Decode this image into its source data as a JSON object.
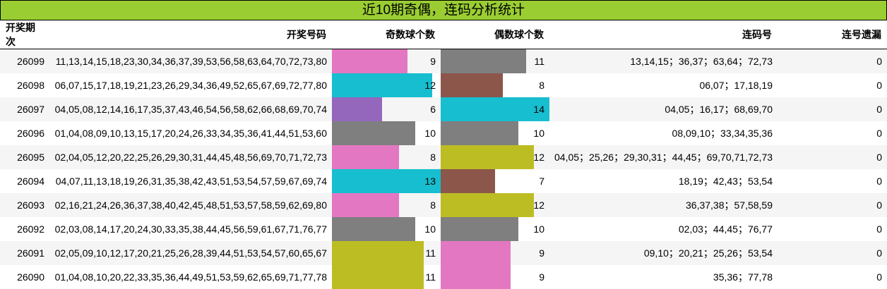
{
  "title": "近10期奇偶，连码分析统计",
  "headers": [
    "开奖期次",
    "开奖号码",
    "奇数球个数",
    "偶数球个数",
    "连码号",
    "连号遗漏"
  ],
  "odd_max": 13,
  "even_max": 14,
  "rows": [
    {
      "period": "26099",
      "numbers": "11,13,14,15,18,23,30,34,36,37,39,53,56,58,63,64,70,72,73,80",
      "odd": 9,
      "odd_color": "#e377c2",
      "even": 11,
      "even_color": "#7f7f7f",
      "consecutive": "13,14,15；36,37；63,64；72,73",
      "miss": "0"
    },
    {
      "period": "26098",
      "numbers": "06,07,15,17,18,19,21,23,26,29,34,36,49,52,65,67,69,72,77,80",
      "odd": 12,
      "odd_color": "#17becf",
      "even": 8,
      "even_color": "#8c564b",
      "consecutive": "06,07；17,18,19",
      "miss": "0"
    },
    {
      "period": "26097",
      "numbers": "04,05,08,12,14,16,17,35,37,43,46,54,56,58,62,66,68,69,70,74",
      "odd": 6,
      "odd_color": "#9467bd",
      "even": 14,
      "even_color": "#17becf",
      "consecutive": "04,05；16,17；68,69,70",
      "miss": "0"
    },
    {
      "period": "26096",
      "numbers": "01,04,08,09,10,13,15,17,20,24,26,33,34,35,36,41,44,51,53,60",
      "odd": 10,
      "odd_color": "#7f7f7f",
      "even": 10,
      "even_color": "#7f7f7f",
      "consecutive": "08,09,10；33,34,35,36",
      "miss": "0"
    },
    {
      "period": "26095",
      "numbers": "02,04,05,12,20,22,25,26,29,30,31,44,45,48,56,69,70,71,72,73",
      "odd": 8,
      "odd_color": "#e377c2",
      "even": 12,
      "even_color": "#bcbd22",
      "consecutive": "04,05；25,26；29,30,31；44,45；69,70,71,72,73",
      "miss": "0"
    },
    {
      "period": "26094",
      "numbers": "04,07,11,13,18,19,26,31,35,38,42,43,51,53,54,57,59,67,69,74",
      "odd": 13,
      "odd_color": "#17becf",
      "even": 7,
      "even_color": "#8c564b",
      "consecutive": "18,19；42,43；53,54",
      "miss": "0"
    },
    {
      "period": "26093",
      "numbers": "02,16,21,24,26,36,37,38,40,42,45,48,51,53,57,58,59,62,69,80",
      "odd": 8,
      "odd_color": "#e377c2",
      "even": 12,
      "even_color": "#bcbd22",
      "consecutive": "36,37,38；57,58,59",
      "miss": "0"
    },
    {
      "period": "26092",
      "numbers": "02,03,08,14,17,20,24,30,33,35,38,44,45,56,59,61,67,71,76,77",
      "odd": 10,
      "odd_color": "#7f7f7f",
      "even": 10,
      "even_color": "#7f7f7f",
      "consecutive": "02,03；44,45；76,77",
      "miss": "0"
    },
    {
      "period": "26091",
      "numbers": "02,05,09,10,12,17,20,21,25,26,28,39,44,51,53,54,57,60,65,67",
      "odd": 11,
      "odd_color": "#bcbd22",
      "even": 9,
      "even_color": "#e377c2",
      "consecutive": "09,10；20,21；25,26；53,54",
      "miss": "0"
    },
    {
      "period": "26090",
      "numbers": "01,04,08,10,20,22,33,35,36,44,49,51,53,59,62,65,69,71,77,78",
      "odd": 11,
      "odd_color": "#bcbd22",
      "even": 9,
      "even_color": "#e377c2",
      "consecutive": "35,36；77,78",
      "miss": "0"
    }
  ]
}
